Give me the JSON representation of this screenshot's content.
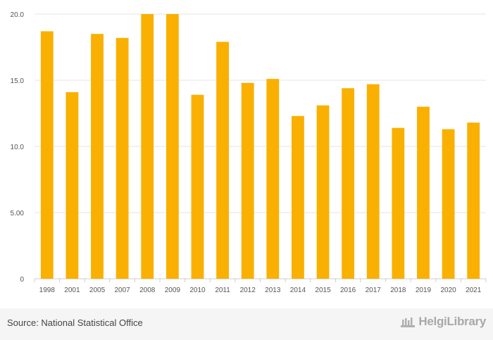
{
  "chart_data": {
    "type": "bar",
    "categories": [
      "1998",
      "2001",
      "2005",
      "2007",
      "2008",
      "2009",
      "2010",
      "2011",
      "2012",
      "2013",
      "2014",
      "2015",
      "2016",
      "2017",
      "2018",
      "2019",
      "2020",
      "2021"
    ],
    "values": [
      18.7,
      14.1,
      18.5,
      18.2,
      20.0,
      20.0,
      13.9,
      17.9,
      14.8,
      15.1,
      12.3,
      13.1,
      14.4,
      14.7,
      11.4,
      13.0,
      11.3,
      11.8
    ],
    "ylim": [
      0,
      20
    ],
    "yticks": [
      0,
      5,
      10,
      15,
      20
    ],
    "ytick_labels": [
      "0",
      "5.00",
      "10.0",
      "15.0",
      "20.0"
    ],
    "grid": true,
    "bar_color": "#f9b000",
    "grid_color": "#e6e6e6",
    "title": "",
    "xlabel": "",
    "ylabel": ""
  },
  "footer": {
    "source": "Source: National Statistical Office",
    "brand": "HelgiLibrary"
  }
}
